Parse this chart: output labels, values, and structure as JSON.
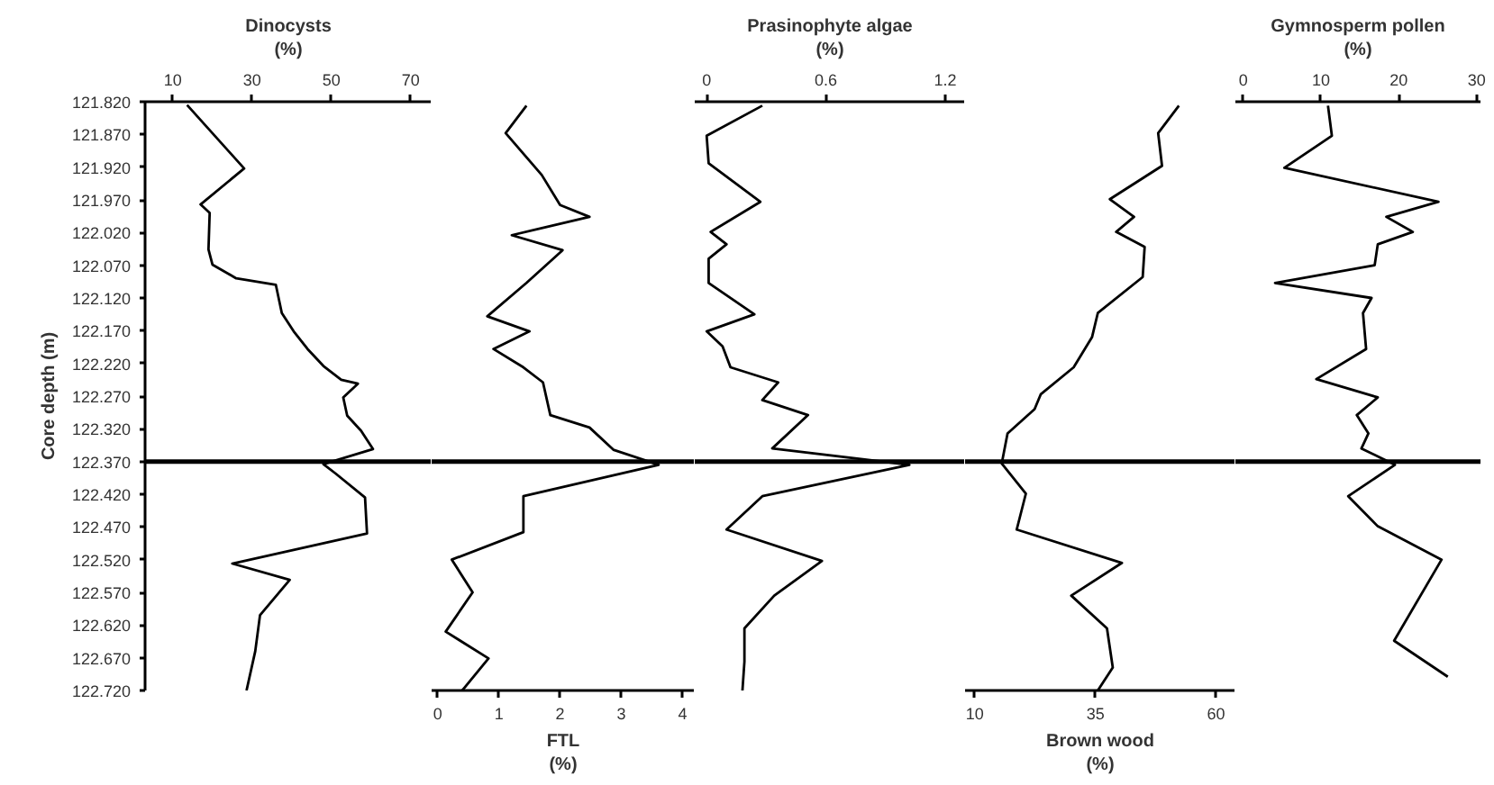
{
  "chart_data": [
    {
      "type": "line",
      "orientation": "horizontal",
      "xlabel": "Dinocysts\n(%)",
      "ylabel": "Core depth (m)",
      "xlim": [
        3,
        75.3
      ],
      "xticks": [
        10,
        30,
        50,
        70
      ],
      "ylim": [
        122.72,
        121.82
      ],
      "yticks": [
        {
          "value": 121.82,
          "label": "121.820"
        },
        {
          "value": 121.87,
          "label": "121.870"
        },
        {
          "value": 121.92,
          "label": "121.920"
        },
        {
          "value": 121.97,
          "label": "121.970"
        },
        {
          "value": 122.02,
          "label": "122.020"
        },
        {
          "value": 122.07,
          "label": "122.070"
        },
        {
          "value": 122.12,
          "label": "122.120"
        },
        {
          "value": 122.17,
          "label": "122.170"
        },
        {
          "value": 122.22,
          "label": "122.220"
        },
        {
          "value": 122.27,
          "label": "122.270"
        },
        {
          "value": 122.32,
          "label": "122.320"
        },
        {
          "value": 122.37,
          "label": "122.370"
        },
        {
          "value": 122.42,
          "label": "122.420"
        },
        {
          "value": 122.47,
          "label": "122.470"
        },
        {
          "value": 122.52,
          "label": "122.520"
        },
        {
          "value": 122.57,
          "label": "122.570"
        },
        {
          "value": 122.62,
          "label": "122.620"
        },
        {
          "value": 122.67,
          "label": "122.670"
        },
        {
          "value": 122.72,
          "label": "122.720"
        }
      ],
      "color": "#000000",
      "values": [
        13.6,
        28,
        17,
        19.3,
        19,
        20,
        26,
        36,
        37.5,
        40.5,
        44,
        48,
        52.5,
        56.7,
        53,
        54,
        57.5,
        60.5,
        48,
        51,
        58.5,
        59,
        25,
        39.5,
        32,
        30.8,
        28.6
      ],
      "x": [
        121.825,
        121.922,
        121.977,
        121.99,
        122.046,
        122.069,
        122.09,
        122.1,
        122.143,
        122.171,
        122.198,
        122.224,
        122.245,
        122.251,
        122.272,
        122.3,
        122.323,
        122.351,
        122.374,
        122.388,
        122.425,
        122.48,
        122.526,
        122.551,
        122.605,
        122.66,
        122.72
      ],
      "ref_lines": [
        {
          "axis": "y",
          "value": 122.37,
          "color": "#000000"
        }
      ]
    },
    {
      "type": "line",
      "orientation": "horizontal",
      "xlabel": "FTL\n(%)",
      "xlim": [
        -0.1,
        4.2
      ],
      "xticks": [
        0,
        1,
        2,
        3,
        4
      ],
      "ylim": [
        122.72,
        121.82
      ],
      "tick_labels": "x",
      "color": "#000000",
      "values": [
        1.45,
        1.11,
        1.7,
        2.0,
        2.48,
        1.21,
        2.04,
        1.45,
        0.81,
        1.5,
        0.91,
        1.4,
        1.72,
        1.84,
        2.48,
        2.87,
        3.61,
        1.4,
        1.4,
        0.23,
        0.57,
        0.13,
        0.83,
        0.4
      ],
      "x": [
        121.826,
        121.868,
        121.932,
        121.978,
        121.996,
        122.024,
        122.047,
        122.097,
        122.148,
        122.171,
        122.198,
        122.226,
        122.249,
        122.299,
        122.318,
        122.352,
        122.375,
        122.423,
        122.478,
        122.52,
        122.57,
        122.63,
        122.671,
        122.72
      ],
      "ref_lines": [
        {
          "axis": "y",
          "value": 122.37,
          "color": "#000000"
        }
      ]
    },
    {
      "type": "line",
      "orientation": "horizontal",
      "xlabel": "Prasinophyte algae\n(%)",
      "xlim": [
        -0.06,
        1.3
      ],
      "xticks": [
        0,
        0.6,
        1.2
      ],
      "ylim": [
        122.72,
        121.82
      ],
      "tick_labels": "x",
      "color": "#000000",
      "values": [
        0.28,
        0,
        0.01,
        0.27,
        0.02,
        0.1,
        0.01,
        0.01,
        0.24,
        0,
        0.08,
        0.12,
        0.36,
        0.28,
        0.51,
        0.33,
        1.02,
        0.28,
        0.1,
        0.58,
        0.34,
        0.19,
        0.19,
        0.18
      ],
      "x": [
        121.826,
        121.872,
        121.914,
        121.973,
        122.019,
        122.038,
        122.06,
        122.097,
        122.145,
        122.171,
        122.194,
        122.226,
        122.249,
        122.276,
        122.299,
        122.35,
        122.375,
        122.423,
        122.474,
        122.522,
        122.575,
        122.625,
        122.676,
        122.72
      ],
      "ref_lines": [
        {
          "axis": "y",
          "value": 122.37,
          "color": "#000000"
        }
      ]
    },
    {
      "type": "line",
      "orientation": "horizontal",
      "xlabel": "Brown wood\n(%)",
      "xlim": [
        8,
        64
      ],
      "xticks": [
        10,
        35,
        60
      ],
      "ylim": [
        122.72,
        121.82
      ],
      "tick_labels": "x",
      "color": "#000000",
      "values": [
        52.3,
        48,
        48.8,
        38,
        43,
        39.3,
        45.2,
        44.8,
        35.5,
        34.3,
        30.5,
        23.7,
        22.4,
        16.8,
        15.6,
        20.6,
        18.7,
        40.5,
        30,
        37.4,
        38.6,
        35.5
      ],
      "x": [
        121.826,
        121.868,
        121.918,
        121.969,
        121.996,
        122.019,
        122.042,
        122.088,
        122.143,
        122.18,
        122.226,
        122.267,
        122.29,
        122.327,
        122.373,
        122.419,
        122.474,
        122.525,
        122.575,
        122.625,
        122.685,
        122.72
      ],
      "ref_lines": [
        {
          "axis": "y",
          "value": 122.37,
          "color": "#000000"
        }
      ]
    },
    {
      "type": "line",
      "orientation": "horizontal",
      "xlabel": "Gymnosperm pollen\n(%)",
      "xlim": [
        -1,
        30.5
      ],
      "xticks": [
        0,
        10,
        20,
        30
      ],
      "ylim": [
        122.72,
        121.82
      ],
      "tick_labels": "x",
      "color": "#000000",
      "values": [
        10.9,
        11.4,
        5.3,
        25.1,
        18.4,
        21.8,
        17.3,
        16.9,
        4.1,
        16.5,
        15.4,
        15.8,
        9.4,
        17.3,
        14.6,
        16.1,
        15.2,
        19.5,
        13.5,
        17.3,
        25.5,
        19.4,
        26.3
      ],
      "x": [
        121.826,
        121.872,
        121.921,
        121.973,
        121.996,
        122.019,
        122.038,
        122.07,
        122.097,
        122.12,
        122.143,
        122.198,
        122.244,
        122.272,
        122.299,
        122.327,
        122.35,
        122.375,
        122.423,
        122.469,
        122.52,
        122.644,
        122.699
      ],
      "ref_lines": [
        {
          "axis": "y",
          "value": 122.37,
          "color": "#000000"
        }
      ]
    }
  ]
}
